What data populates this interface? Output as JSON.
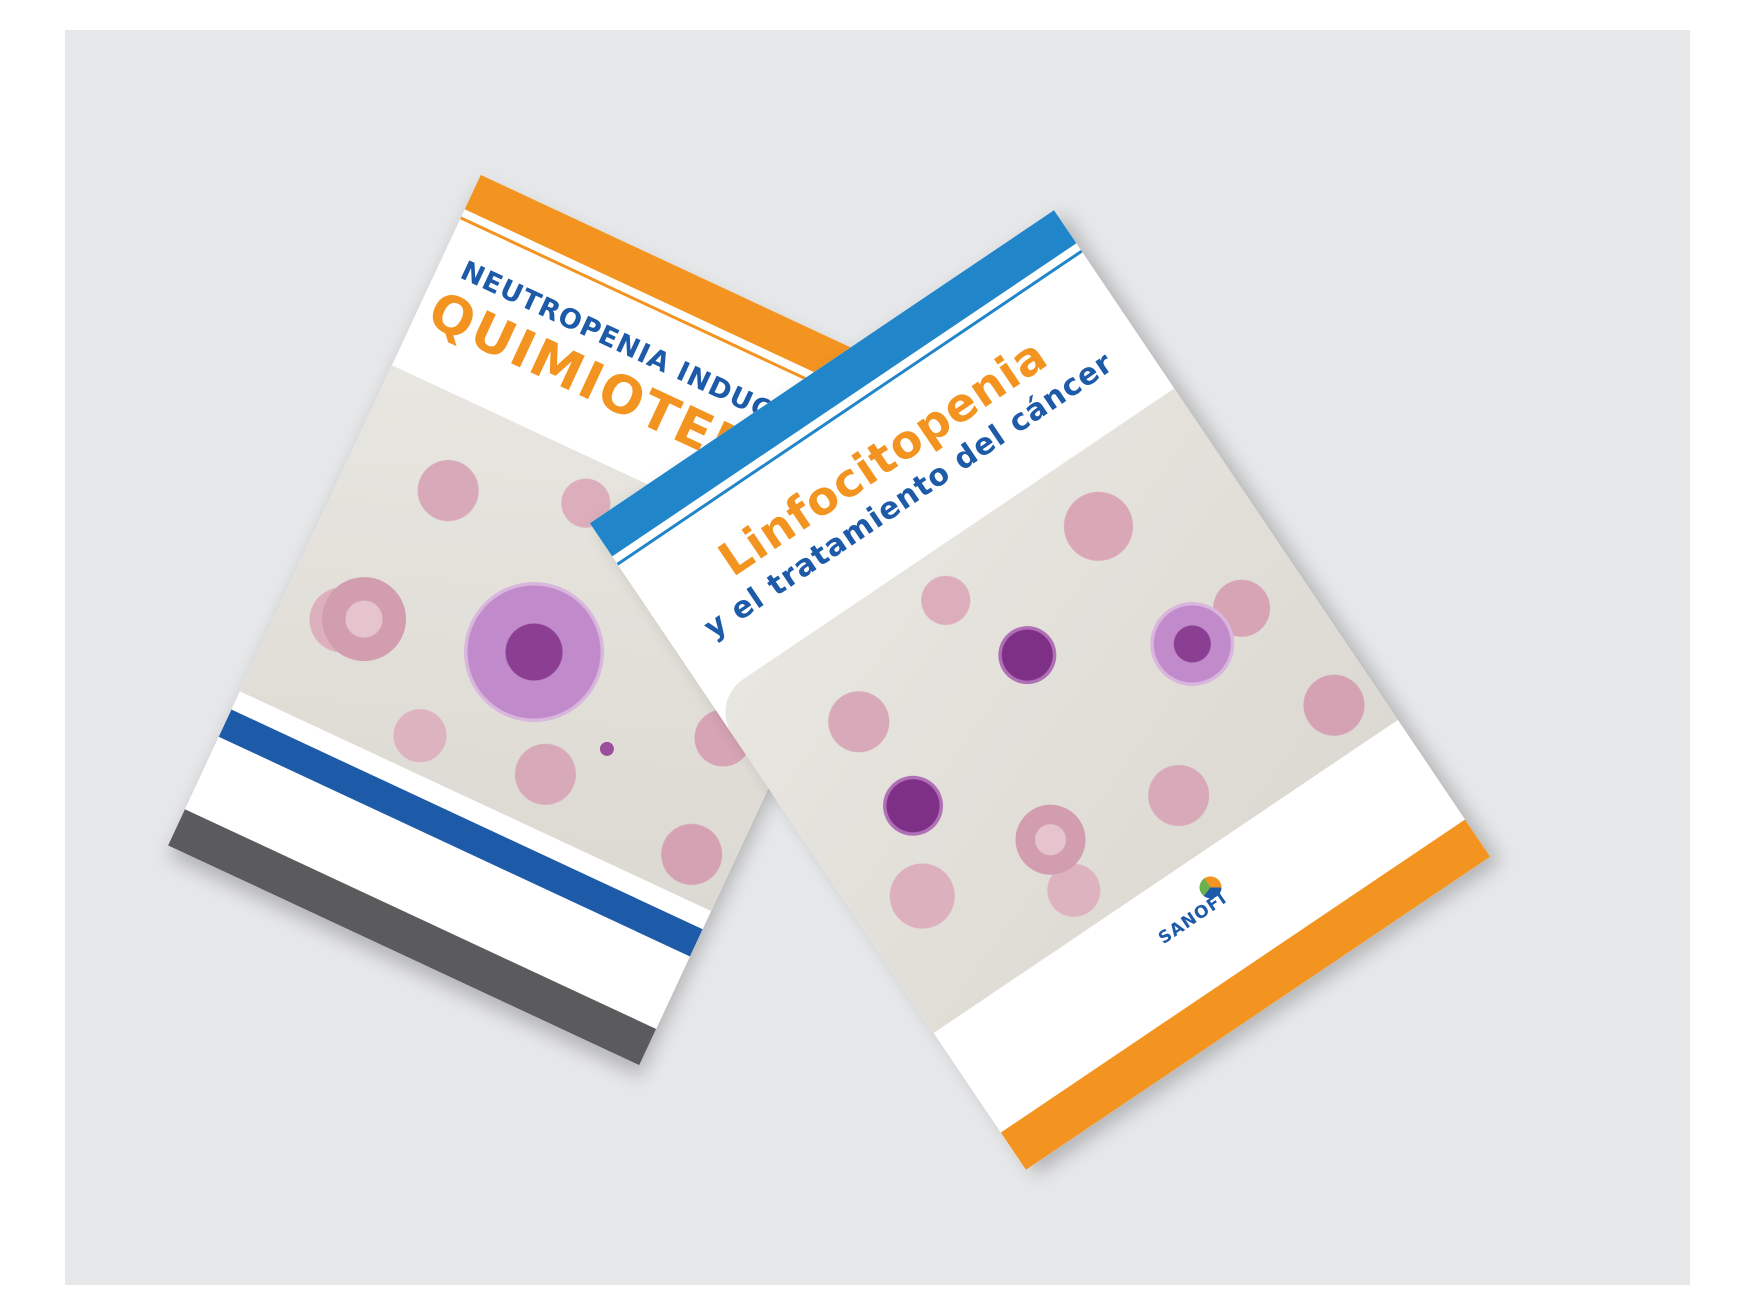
{
  "booklet_left": {
    "subtitle": "NEUTROPENIA INDUCIDA POR",
    "title": "QUIMIOTERAPIA",
    "colors": {
      "top_band": "#f39420",
      "mid_band": "#1d5aa8",
      "bottom_band": "#5b5b5d"
    }
  },
  "booklet_right": {
    "title": "Linfocitopenia",
    "subtitle": "y el tratamiento del cáncer",
    "logo_text": "SANOFI",
    "colors": {
      "top_band": "#2085c9",
      "bottom_band": "#f39420"
    }
  }
}
